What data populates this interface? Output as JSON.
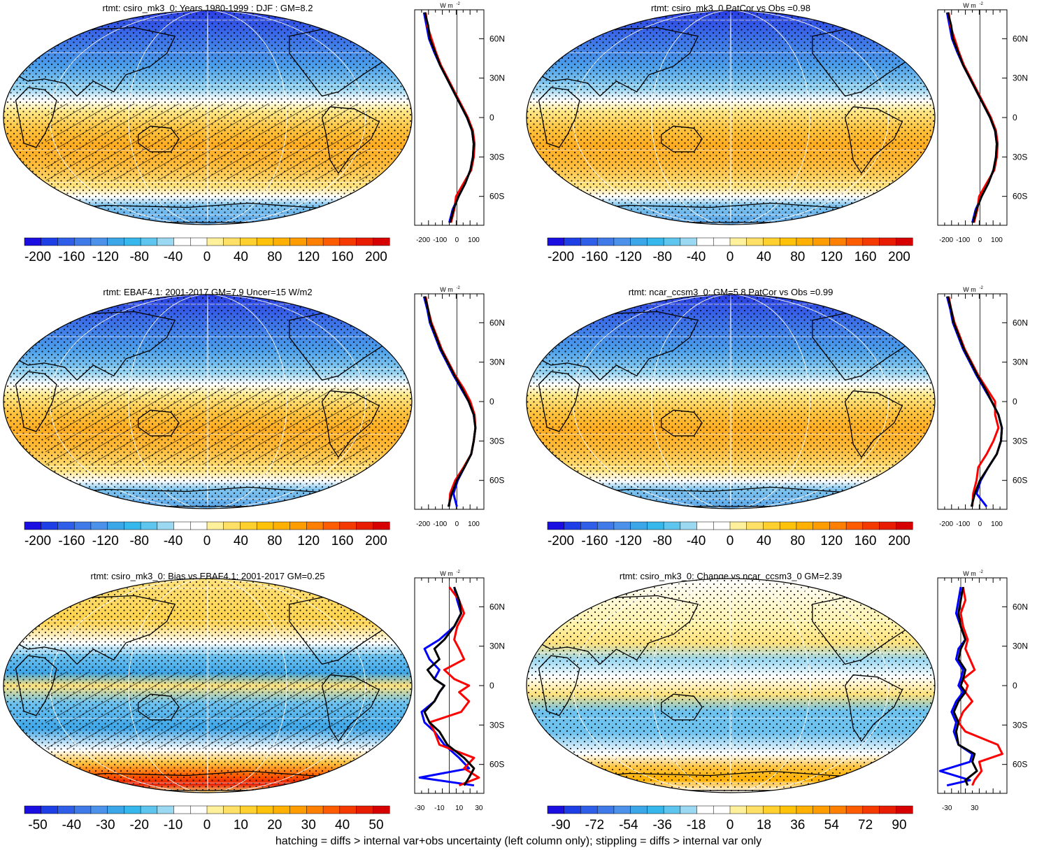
{
  "footnote": "hatching = diffs > internal var+obs uncertainty (left column only); stippling = diffs > internal var only",
  "colorbars": {
    "full": {
      "labels": [
        "-200",
        "-160",
        "-120",
        "-80",
        "-40",
        "0",
        "40",
        "80",
        "120",
        "160",
        "200"
      ],
      "colors": [
        "#1a0fe0",
        "#1e3fe6",
        "#2f5fe8",
        "#3f7ae8",
        "#4c92ea",
        "#3ba6e8",
        "#37b8ec",
        "#5ec6ee",
        "#9bd8f2",
        "#ffffff",
        "#ffffff",
        "#fff09c",
        "#ffe066",
        "#ffd02e",
        "#ffc20a",
        "#ffb000",
        "#ff9c00",
        "#ff8000",
        "#ff5c00",
        "#f53a00",
        "#e81c00",
        "#d60000"
      ]
    },
    "bias": {
      "labels": [
        "-50",
        "-40",
        "-30",
        "-20",
        "-10",
        "0",
        "10",
        "20",
        "30",
        "40",
        "50"
      ],
      "colors": [
        "#1a0fe0",
        "#1e3fe6",
        "#2f5fe8",
        "#3f7ae8",
        "#4c92ea",
        "#3ba6e8",
        "#37b8ec",
        "#5ec6ee",
        "#9bd8f2",
        "#ffffff",
        "#ffffff",
        "#fff09c",
        "#ffe066",
        "#ffd02e",
        "#ffc20a",
        "#ffb000",
        "#ff9c00",
        "#ff8000",
        "#ff5c00",
        "#f53a00",
        "#e81c00",
        "#d60000"
      ]
    },
    "change": {
      "labels": [
        "-90",
        "-72",
        "-54",
        "-36",
        "-18",
        "0",
        "18",
        "36",
        "54",
        "72",
        "90"
      ],
      "colors": [
        "#1a0fe0",
        "#1e3fe6",
        "#2f5fe8",
        "#3f7ae8",
        "#4c92ea",
        "#3ba6e8",
        "#37b8ec",
        "#5ec6ee",
        "#9bd8f2",
        "#ffffff",
        "#ffffff",
        "#fff09c",
        "#ffe066",
        "#ffd02e",
        "#ffc20a",
        "#ffb000",
        "#ff9c00",
        "#ff8000",
        "#ff5c00",
        "#f53a00",
        "#e81c00",
        "#d60000"
      ]
    }
  },
  "profile_colors": {
    "model": "#000000",
    "obs": "#ff0000",
    "ref": "#0000ff"
  },
  "panels": [
    {
      "id": "p1",
      "title": "rtmt: csiro_mk3_0: Years 1980-1999 : DJF : GM=8.2",
      "field": "abs",
      "hatch": true,
      "stipple": "dense",
      "colorbar": "full",
      "profile": {
        "unit": "W m",
        "unit_sup": "-2",
        "xticks": [
          "-200",
          "-100",
          "0",
          "100"
        ],
        "xticks_at": [
          -200,
          -100,
          0,
          100
        ],
        "xlim": [
          -250,
          160
        ],
        "yticks": [
          "60N",
          "30N",
          "0",
          "30S",
          "60S"
        ],
        "yticks_at": [
          60,
          30,
          0,
          -30,
          -60
        ],
        "lat": [
          80,
          70,
          60,
          50,
          40,
          30,
          20,
          10,
          0,
          -10,
          -20,
          -30,
          -40,
          -50,
          -60,
          -70,
          -80
        ],
        "black": [
          -190,
          -170,
          -160,
          -130,
          -100,
          -60,
          -20,
          20,
          60,
          90,
          100,
          95,
          80,
          50,
          10,
          -20,
          -40
        ],
        "red": [
          -185,
          -175,
          -150,
          -125,
          -95,
          -55,
          -15,
          25,
          65,
          95,
          105,
          100,
          85,
          40,
          -5,
          -15,
          -35
        ],
        "blue": [
          -195,
          -180,
          -165,
          -135,
          -100,
          -60,
          -20,
          20,
          60,
          90,
          100,
          95,
          80,
          50,
          10,
          -25,
          -45
        ]
      }
    },
    {
      "id": "p2",
      "title": "rtmt: csiro_mk3_0 PatCor vs Obs =0.98",
      "field": "abs",
      "hatch": false,
      "stipple": "dense",
      "colorbar": "full",
      "profile": {
        "unit": "W m",
        "unit_sup": "-2",
        "xticks": [
          "-200",
          "-100",
          "0",
          "100"
        ],
        "xticks_at": [
          -200,
          -100,
          0,
          100
        ],
        "xlim": [
          -250,
          160
        ],
        "yticks": [
          "60N",
          "30N",
          "0",
          "30S",
          "60S"
        ],
        "yticks_at": [
          60,
          30,
          0,
          -30,
          -60
        ],
        "lat": [
          80,
          70,
          60,
          50,
          40,
          30,
          20,
          10,
          0,
          -10,
          -20,
          -30,
          -40,
          -50,
          -60,
          -70,
          -80
        ],
        "black": [
          -190,
          -170,
          -160,
          -130,
          -100,
          -60,
          -20,
          20,
          60,
          90,
          100,
          95,
          80,
          50,
          10,
          -20,
          -40
        ],
        "red": [
          -185,
          -175,
          -150,
          -125,
          -95,
          -55,
          -15,
          25,
          65,
          95,
          105,
          100,
          85,
          40,
          -5,
          -15,
          -35
        ],
        "blue": [
          -195,
          -180,
          -165,
          -135,
          -100,
          -60,
          -20,
          20,
          60,
          90,
          100,
          95,
          80,
          50,
          10,
          -25,
          -45
        ]
      }
    },
    {
      "id": "p3",
      "title": "rtmt: EBAF4.1: 2001-2017 GM=7.9 Uncer=15 W/m2",
      "field": "abs",
      "hatch": true,
      "stipple": "dense",
      "colorbar": "full",
      "profile": {
        "unit": "W m",
        "unit_sup": "-2",
        "xticks": [
          "-200",
          "-100",
          "0",
          "100"
        ],
        "xticks_at": [
          -200,
          -100,
          0,
          100
        ],
        "xlim": [
          -250,
          160
        ],
        "yticks": [
          "60N",
          "30N",
          "0",
          "30S",
          "60S"
        ],
        "yticks_at": [
          60,
          30,
          0,
          -30,
          -60
        ],
        "lat": [
          80,
          70,
          60,
          50,
          40,
          30,
          20,
          10,
          0,
          -10,
          -20,
          -30,
          -40,
          -50,
          -60,
          -70,
          -80
        ],
        "black": [
          -190,
          -170,
          -155,
          -125,
          -95,
          -55,
          -15,
          30,
          70,
          100,
          110,
          100,
          85,
          45,
          0,
          -30,
          -50
        ],
        "red": [
          -185,
          -170,
          -150,
          -120,
          -90,
          -50,
          -10,
          40,
          80,
          105,
          110,
          100,
          85,
          40,
          -10,
          -40,
          -45
        ],
        "blue": [
          -195,
          -175,
          -160,
          -130,
          -100,
          -60,
          -20,
          25,
          70,
          100,
          110,
          100,
          85,
          45,
          5,
          -20,
          0
        ]
      }
    },
    {
      "id": "p4",
      "title": "rtmt: ncar_ccsm3_0: GM=5.8 PatCor vs Obs =0.99",
      "field": "abs",
      "hatch": false,
      "stipple": "dense",
      "colorbar": "full",
      "profile": {
        "unit": "W m",
        "unit_sup": "-2",
        "xticks": [
          "-200",
          "-100",
          "0",
          "100"
        ],
        "xticks_at": [
          -200,
          -100,
          0,
          100
        ],
        "xlim": [
          -250,
          160
        ],
        "yticks": [
          "60N",
          "30N",
          "0",
          "30S",
          "60S"
        ],
        "yticks_at": [
          60,
          30,
          0,
          -30,
          -60
        ],
        "lat": [
          80,
          70,
          60,
          50,
          40,
          30,
          20,
          10,
          0,
          -10,
          -20,
          -30,
          -40,
          -50,
          -60,
          -70,
          -80
        ],
        "black": [
          -190,
          -170,
          -155,
          -125,
          -95,
          -55,
          -15,
          30,
          70,
          110,
          130,
          125,
          100,
          50,
          0,
          -30,
          -50
        ],
        "red": [
          -185,
          -170,
          -150,
          -120,
          -90,
          -50,
          -10,
          40,
          90,
          90,
          110,
          80,
          40,
          -10,
          -20,
          -40,
          -45
        ],
        "blue": [
          -195,
          -175,
          -160,
          -130,
          -100,
          -60,
          -20,
          25,
          70,
          110,
          130,
          125,
          100,
          50,
          5,
          -20,
          40
        ]
      }
    },
    {
      "id": "p5",
      "title": "rtmt: csiro_mk3_0: Bias vs EBAF4.1: 2001-2017 GM=0.25",
      "field": "bias",
      "hatch": true,
      "stipple": "dense",
      "colorbar": "bias",
      "profile": {
        "unit": "W m",
        "unit_sup": "-2",
        "xticks": [
          "-30",
          "-10",
          "10",
          "30"
        ],
        "xticks_at": [
          -30,
          -10,
          10,
          30
        ],
        "xlim": [
          -35,
          35
        ],
        "yticks": [
          "60N",
          "30N",
          "0",
          "30S",
          "60S"
        ],
        "yticks_at": [
          60,
          30,
          0,
          -30,
          -60
        ],
        "lat": [
          75,
          65,
          55,
          45,
          35,
          28,
          20,
          12,
          5,
          0,
          -5,
          -12,
          -20,
          -28,
          -35,
          -45,
          -55,
          -63,
          -70,
          -76
        ],
        "black": [
          5,
          10,
          12,
          5,
          -5,
          -15,
          -10,
          -22,
          -15,
          -5,
          -10,
          -15,
          -25,
          -20,
          -10,
          -2,
          15,
          25,
          20,
          15
        ],
        "red": [
          0,
          10,
          15,
          8,
          5,
          10,
          15,
          -5,
          5,
          20,
          10,
          20,
          12,
          -20,
          -15,
          -10,
          25,
          15,
          30,
          10
        ],
        "blue": [
          5,
          8,
          12,
          5,
          -10,
          -25,
          -20,
          -10,
          -15,
          -5,
          -10,
          -15,
          -28,
          -25,
          -15,
          -5,
          10,
          20,
          -30,
          25
        ]
      }
    },
    {
      "id": "p6",
      "title": "rtmt: csiro_mk3_0: Change vs ncar_ccsm3_0 GM=2.39",
      "field": "change",
      "hatch": false,
      "stipple": "sparse",
      "colorbar": "change",
      "profile": {
        "unit": "W m",
        "unit_sup": "-2",
        "xticks": [
          "-30",
          "30"
        ],
        "xticks_at": [
          -30,
          30
        ],
        "xlim": [
          -50,
          100
        ],
        "yticks": [
          "60N",
          "30N",
          "0",
          "30S",
          "60S"
        ],
        "yticks_at": [
          60,
          30,
          0,
          -30,
          -60
        ],
        "lat": [
          75,
          65,
          55,
          45,
          35,
          28,
          20,
          12,
          5,
          0,
          -5,
          -12,
          -20,
          -28,
          -35,
          -45,
          -52,
          -58,
          -65,
          -72,
          -76
        ],
        "black": [
          5,
          0,
          -5,
          0,
          10,
          0,
          -5,
          10,
          5,
          0,
          10,
          -5,
          -15,
          -5,
          -10,
          -5,
          30,
          25,
          35,
          10,
          15
        ],
        "red": [
          5,
          10,
          0,
          5,
          15,
          10,
          20,
          30,
          5,
          15,
          10,
          25,
          5,
          -5,
          10,
          80,
          90,
          40,
          45,
          30,
          25
        ],
        "blue": [
          0,
          -5,
          -10,
          0,
          10,
          -5,
          -10,
          5,
          0,
          -5,
          5,
          -10,
          -20,
          -10,
          -15,
          -5,
          25,
          20,
          -45,
          20,
          -30
        ]
      }
    }
  ]
}
